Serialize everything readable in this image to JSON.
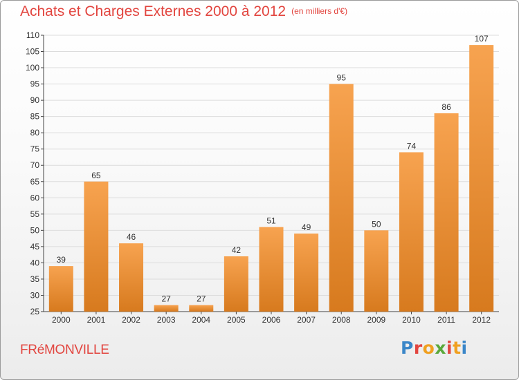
{
  "header": {
    "title": "Achats et Charges Externes 2000 à 2012",
    "unit": "(en milliers d'€)"
  },
  "footer": {
    "commune": "FRéMONVILLE",
    "logo_text": "Proxiti"
  },
  "logo_colors": [
    "#3a86c8",
    "#e2453f",
    "#f0a020",
    "#5aa83a",
    "#e2453f",
    "#f0a020",
    "#3a86c8"
  ],
  "colors": {
    "bar_top": "#f7a350",
    "bar_bottom": "#d77a1e",
    "title": "#e2453f",
    "grid": "#dcdcdc"
  },
  "chart_data": {
    "type": "bar",
    "title": "Achats et Charges Externes 2000 à 2012",
    "categories": [
      "2000",
      "2001",
      "2002",
      "2003",
      "2004",
      "2005",
      "2006",
      "2007",
      "2008",
      "2009",
      "2010",
      "2011",
      "2012"
    ],
    "values": [
      39,
      65,
      46,
      27,
      27,
      42,
      51,
      49,
      95,
      50,
      74,
      86,
      107
    ],
    "ylim": [
      25,
      110
    ],
    "yticks": [
      25,
      30,
      35,
      40,
      45,
      50,
      55,
      60,
      65,
      70,
      75,
      80,
      85,
      90,
      95,
      100,
      105,
      110
    ],
    "grid": true
  }
}
